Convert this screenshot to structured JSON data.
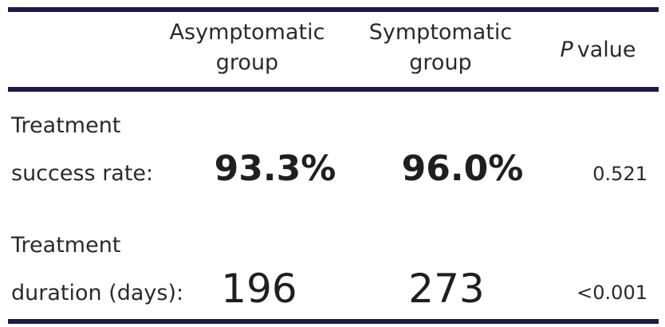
{
  "table": {
    "header": {
      "asymptomatic_line1": "Asymptomatic",
      "asymptomatic_line2": "group",
      "symptomatic_line1": "Symptomatic",
      "symptomatic_line2": "group",
      "p_italic": "P",
      "p_rest": "value"
    },
    "rows": [
      {
        "label_line1": "Treatment",
        "label_line2": "success rate:",
        "asymptomatic": "93.3%",
        "symptomatic": "96.0%",
        "p_value": "0.521"
      },
      {
        "label_line1": "Treatment",
        "label_line2": "duration (days):",
        "asymptomatic": "196",
        "symptomatic": "273",
        "p_value": "<0.001"
      }
    ]
  },
  "colors": {
    "rule": "#1c1a45",
    "text": "#1f1f22"
  }
}
